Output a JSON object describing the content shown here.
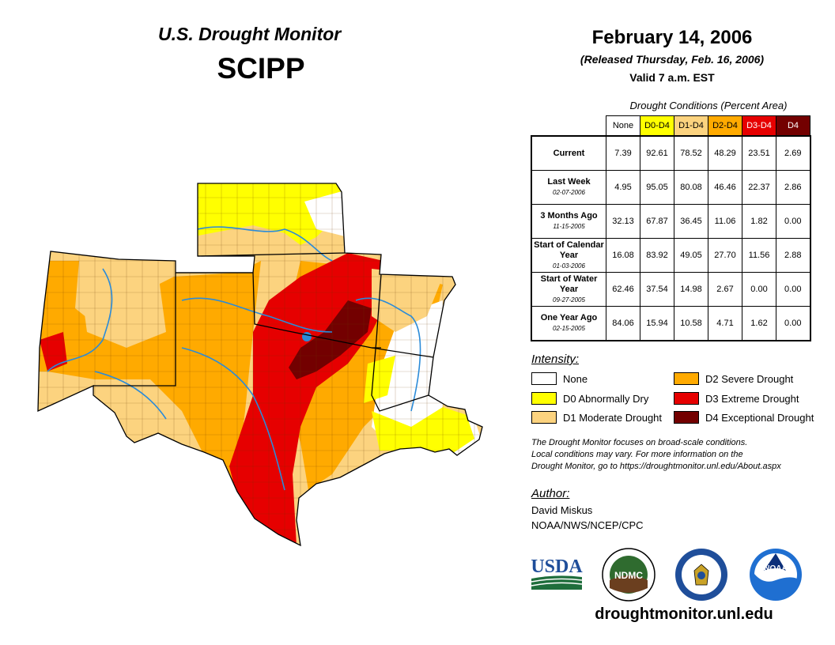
{
  "header": {
    "title": "U.S. Drought Monitor",
    "region": "SCIPP",
    "date": "February 14, 2006",
    "released": "(Released Thursday, Feb. 16, 2006)",
    "valid": "Valid 7 a.m. EST"
  },
  "table": {
    "title": "Drought Conditions (Percent Area)",
    "columns": [
      {
        "label": "None",
        "bg": "#ffffff",
        "fg": "#000000"
      },
      {
        "label": "D0-D4",
        "bg": "#ffff00",
        "fg": "#000000"
      },
      {
        "label": "D1-D4",
        "bg": "#fcd37f",
        "fg": "#000000"
      },
      {
        "label": "D2-D4",
        "bg": "#ffaa00",
        "fg": "#000000"
      },
      {
        "label": "D3-D4",
        "bg": "#e60000",
        "fg": "#ffffff"
      },
      {
        "label": "D4",
        "bg": "#730000",
        "fg": "#ffffff"
      }
    ],
    "rows": [
      {
        "label": "Current",
        "date": "",
        "values": [
          "7.39",
          "92.61",
          "78.52",
          "48.29",
          "23.51",
          "2.69"
        ]
      },
      {
        "label": "Last Week",
        "date": "02-07-2006",
        "values": [
          "4.95",
          "95.05",
          "80.08",
          "46.46",
          "22.37",
          "2.86"
        ]
      },
      {
        "label": "3 Months Ago",
        "date": "11-15-2005",
        "values": [
          "32.13",
          "67.87",
          "36.45",
          "11.06",
          "1.82",
          "0.00"
        ]
      },
      {
        "label": "Start of Calendar Year",
        "date": "01-03-2006",
        "values": [
          "16.08",
          "83.92",
          "49.05",
          "27.70",
          "11.56",
          "2.88"
        ]
      },
      {
        "label": "Start of Water Year",
        "date": "09-27-2005",
        "values": [
          "62.46",
          "37.54",
          "14.98",
          "2.67",
          "0.00",
          "0.00"
        ]
      },
      {
        "label": "One Year Ago",
        "date": "02-15-2005",
        "values": [
          "84.06",
          "15.94",
          "10.58",
          "4.71",
          "1.62",
          "0.00"
        ]
      }
    ]
  },
  "legend": {
    "title": "Intensity:",
    "items": [
      {
        "label": "None",
        "color": "#ffffff"
      },
      {
        "label": "D0 Abnormally Dry",
        "color": "#ffff00"
      },
      {
        "label": "D1 Moderate Drought",
        "color": "#fcd37f"
      },
      {
        "label": "D2 Severe Drought",
        "color": "#ffaa00"
      },
      {
        "label": "D3 Extreme Drought",
        "color": "#e60000"
      },
      {
        "label": "D4 Exceptional Drought",
        "color": "#730000"
      }
    ]
  },
  "note": {
    "line1": "The Drought Monitor focuses on broad-scale conditions.",
    "line2": "Local conditions may vary. For more information on the",
    "line3": "Drought Monitor, go to https://droughtmonitor.unl.edu/About.aspx"
  },
  "author": {
    "label": "Author:",
    "name": "David Miskus",
    "org": "NOAA/NWS/NCEP/CPC"
  },
  "logos": {
    "usda": "USDA",
    "ndmc": "NDMC",
    "noaa": "NOAA"
  },
  "url": "droughtmonitor.unl.edu"
}
